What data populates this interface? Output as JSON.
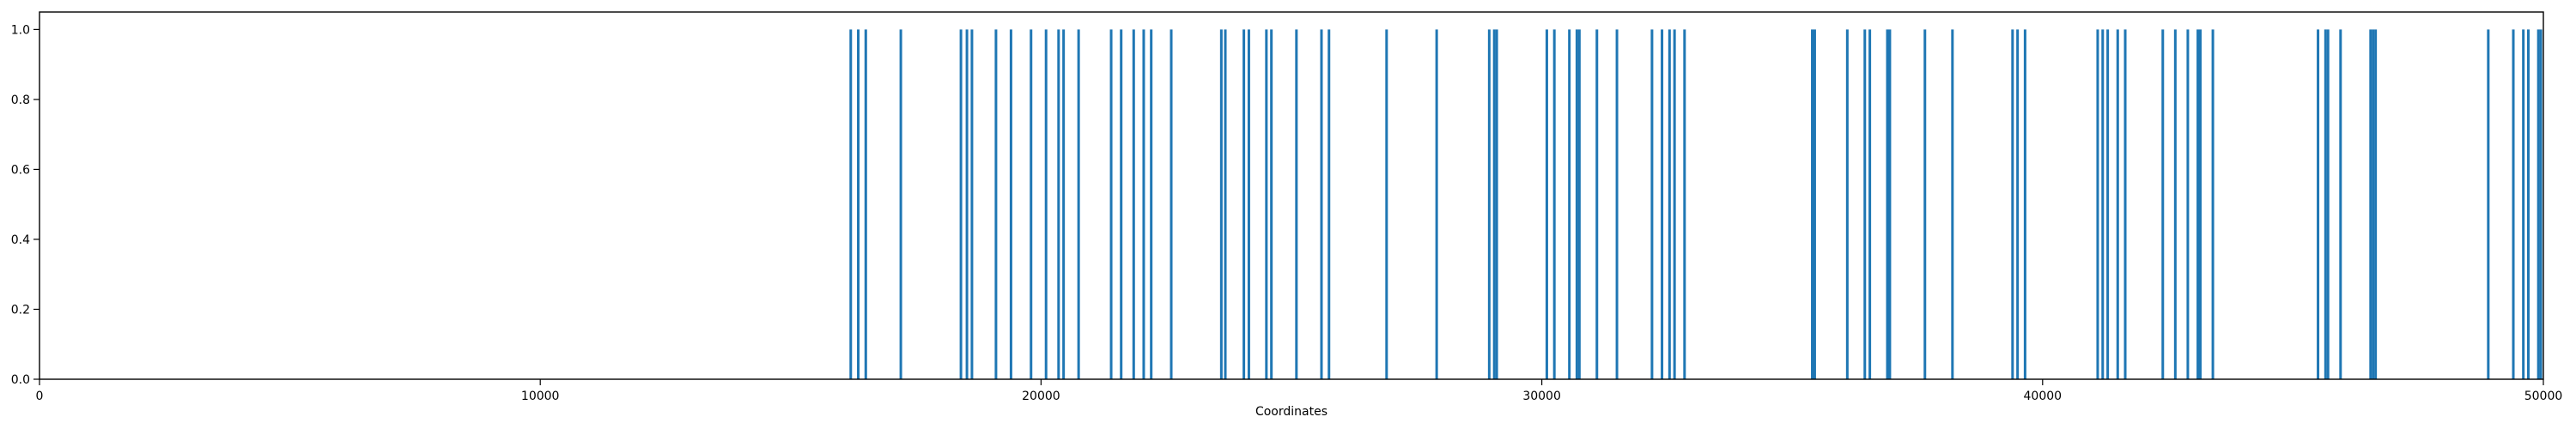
{
  "chart_data": {
    "type": "bar",
    "title": "",
    "xlabel": "Coordinates",
    "ylabel": "",
    "xlim": [
      0,
      50000
    ],
    "ylim": [
      0,
      1.05
    ],
    "x_ticks": [
      0,
      10000,
      20000,
      30000,
      40000,
      50000
    ],
    "x_tick_labels": [
      "0",
      "10000",
      "20000",
      "30000",
      "40000",
      "50000"
    ],
    "y_ticks": [
      0.0,
      0.2,
      0.4,
      0.6,
      0.8,
      1.0
    ],
    "y_tick_labels": [
      "0.0",
      "0.2",
      "0.4",
      "0.6",
      "0.8",
      "1.0"
    ],
    "grid": false,
    "legend": "none",
    "bar_color": "#1f77b4",
    "values_note": "each bar has value 1.0",
    "x": [
      16200,
      16350,
      16500,
      17200,
      18400,
      18520,
      18620,
      19100,
      19400,
      19800,
      20100,
      20350,
      20450,
      20750,
      21400,
      21600,
      21850,
      22050,
      22200,
      22600,
      23600,
      23680,
      24050,
      24150,
      24500,
      24600,
      25100,
      25600,
      25750,
      26900,
      27900,
      28950,
      29050,
      29100,
      30100,
      30250,
      30550,
      30700,
      30750,
      31100,
      31500,
      32200,
      32400,
      32550,
      32650,
      32850,
      35400,
      35450,
      36100,
      36450,
      36550,
      36900,
      36950,
      37650,
      38200,
      39400,
      39500,
      39650,
      41100,
      41200,
      41300,
      41500,
      41650,
      42400,
      42650,
      42900,
      43100,
      43150,
      43400,
      45500,
      45650,
      45700,
      45950,
      46550,
      46600,
      46650,
      48900,
      49400,
      49600,
      49700,
      49900,
      49950
    ],
    "values": [
      1,
      1,
      1,
      1,
      1,
      1,
      1,
      1,
      1,
      1,
      1,
      1,
      1,
      1,
      1,
      1,
      1,
      1,
      1,
      1,
      1,
      1,
      1,
      1,
      1,
      1,
      1,
      1,
      1,
      1,
      1,
      1,
      1,
      1,
      1,
      1,
      1,
      1,
      1,
      1,
      1,
      1,
      1,
      1,
      1,
      1,
      1,
      1,
      1,
      1,
      1,
      1,
      1,
      1,
      1,
      1,
      1,
      1,
      1,
      1,
      1,
      1,
      1,
      1,
      1,
      1,
      1,
      1,
      1,
      1,
      1,
      1,
      1,
      1,
      1,
      1,
      1,
      1,
      1,
      1,
      1,
      1
    ]
  }
}
